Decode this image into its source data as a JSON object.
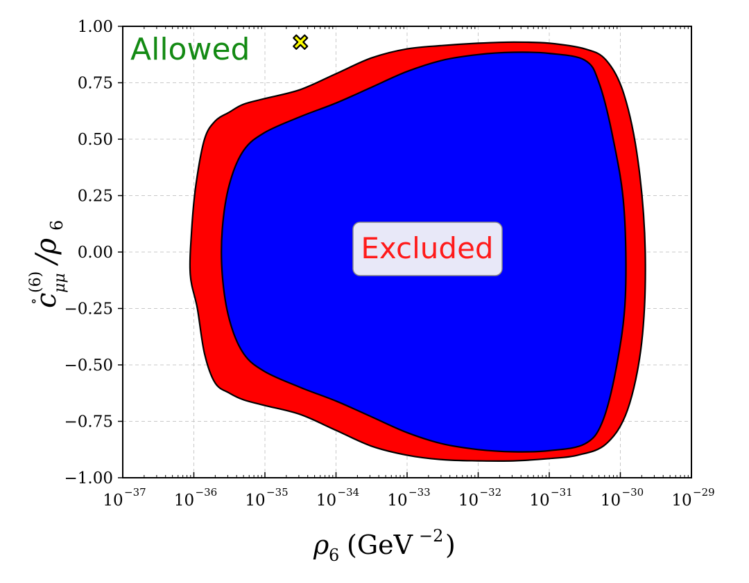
{
  "colors": {
    "outer_region": "#ff0000",
    "inner_region": "#0000ff",
    "allowed_text": "#138a13",
    "excluded_text": "#ff1a1a",
    "excluded_box_fill": "#e8e8f8",
    "marker_fill": "#ffff00"
  },
  "chart_data": {
    "type": "area",
    "xscale": "log",
    "xlim_log10": [
      -37,
      -29
    ],
    "ylim": [
      -1.0,
      1.0
    ],
    "grid": true,
    "xlabel": "ρ6 (GeV^-2)",
    "ylabel": "c̊(6)μμ / ρ6",
    "x_tick_exponents": [
      "-37",
      "-36",
      "-35",
      "-34",
      "-33",
      "-32",
      "-31",
      "-30",
      "-29"
    ],
    "x_tick_base": "10",
    "y_tick_labels": [
      "1.00",
      "0.75",
      "0.50",
      "0.25",
      "0.00",
      "−0.25",
      "−0.50",
      "−0.75",
      "−1.00"
    ],
    "y_tick_values": [
      1.0,
      0.75,
      0.5,
      0.25,
      0.0,
      -0.25,
      -0.5,
      -0.75,
      -1.0
    ],
    "annotations": {
      "allowed": "Allowed",
      "excluded": "Excluded"
    },
    "marker": {
      "shape": "X",
      "log10_x": -34.5,
      "y": 0.93
    },
    "regions": [
      {
        "name": "outer",
        "boundary": [
          [
            -35.7,
            0.58
          ],
          [
            -35.5,
            0.62
          ],
          [
            -35.3,
            0.655
          ],
          [
            -35.0,
            0.68
          ],
          [
            -34.5,
            0.72
          ],
          [
            -34.0,
            0.79
          ],
          [
            -33.5,
            0.86
          ],
          [
            -33.0,
            0.9
          ],
          [
            -32.5,
            0.915
          ],
          [
            -32.0,
            0.925
          ],
          [
            -31.5,
            0.93
          ],
          [
            -31.0,
            0.925
          ],
          [
            -30.5,
            0.9
          ],
          [
            -30.2,
            0.85
          ],
          [
            -29.95,
            0.7
          ],
          [
            -29.75,
            0.4
          ],
          [
            -29.65,
            0.0
          ],
          [
            -29.7,
            -0.4
          ],
          [
            -29.9,
            -0.7
          ],
          [
            -30.2,
            -0.85
          ],
          [
            -30.6,
            -0.9
          ],
          [
            -31.0,
            -0.915
          ],
          [
            -31.5,
            -0.925
          ],
          [
            -32.0,
            -0.925
          ],
          [
            -32.5,
            -0.92
          ],
          [
            -33.0,
            -0.9
          ],
          [
            -33.5,
            -0.86
          ],
          [
            -34.0,
            -0.79
          ],
          [
            -34.5,
            -0.72
          ],
          [
            -35.0,
            -0.68
          ],
          [
            -35.3,
            -0.655
          ],
          [
            -35.5,
            -0.625
          ],
          [
            -35.7,
            -0.58
          ],
          [
            -35.85,
            -0.45
          ],
          [
            -35.95,
            -0.25
          ],
          [
            -36.05,
            -0.1
          ],
          [
            -36.03,
            0.1
          ],
          [
            -35.97,
            0.3
          ],
          [
            -35.85,
            0.5
          ]
        ]
      },
      {
        "name": "inner",
        "boundary": [
          [
            -35.0,
            0.53
          ],
          [
            -34.5,
            0.6
          ],
          [
            -34.0,
            0.66
          ],
          [
            -33.5,
            0.73
          ],
          [
            -33.0,
            0.8
          ],
          [
            -32.5,
            0.85
          ],
          [
            -32.0,
            0.875
          ],
          [
            -31.5,
            0.885
          ],
          [
            -31.0,
            0.88
          ],
          [
            -30.5,
            0.85
          ],
          [
            -30.3,
            0.75
          ],
          [
            -30.1,
            0.5
          ],
          [
            -29.95,
            0.2
          ],
          [
            -29.93,
            -0.2
          ],
          [
            -30.05,
            -0.5
          ],
          [
            -30.25,
            -0.75
          ],
          [
            -30.5,
            -0.85
          ],
          [
            -31.0,
            -0.88
          ],
          [
            -31.5,
            -0.885
          ],
          [
            -32.0,
            -0.875
          ],
          [
            -32.5,
            -0.85
          ],
          [
            -33.0,
            -0.8
          ],
          [
            -33.5,
            -0.73
          ],
          [
            -34.0,
            -0.66
          ],
          [
            -34.5,
            -0.6
          ],
          [
            -35.0,
            -0.53
          ],
          [
            -35.3,
            -0.45
          ],
          [
            -35.5,
            -0.3
          ],
          [
            -35.6,
            -0.1
          ],
          [
            -35.6,
            0.1
          ],
          [
            -35.5,
            0.3
          ],
          [
            -35.3,
            0.45
          ]
        ]
      }
    ]
  }
}
